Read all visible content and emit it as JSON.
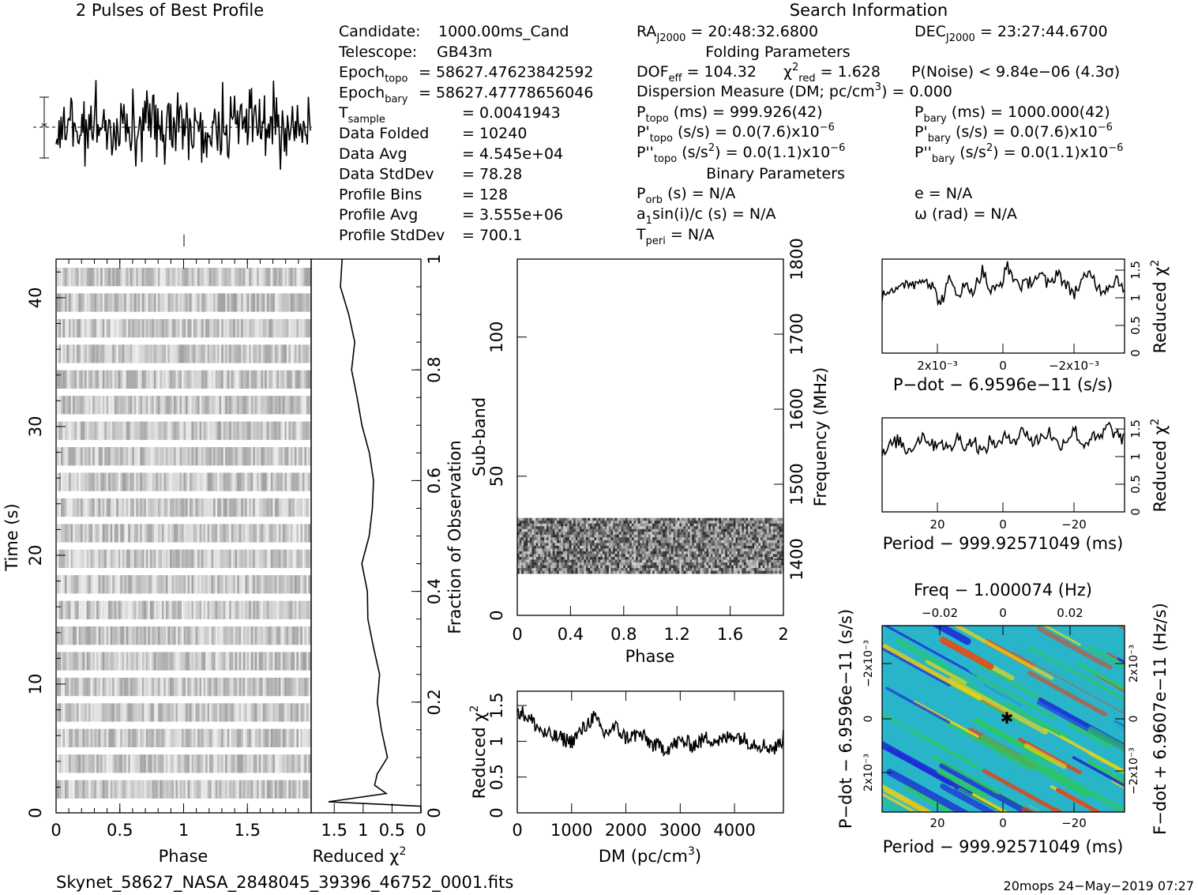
{
  "header": {
    "profile_title": "2 Pulses of Best Profile",
    "search_title": "Search Information",
    "folding_title": "Folding Parameters",
    "binary_title": "Binary Parameters"
  },
  "candidate_info": [
    {
      "label": "Candidate:",
      "value": "1000.00ms_Cand"
    },
    {
      "label": "Telescope:",
      "value": "GB43m"
    },
    {
      "label": "Epoch",
      "sub": "topo",
      "value": "= 58627.47623842592"
    },
    {
      "label": "Epoch",
      "sub": "bary",
      "value": "= 58627.47778656046"
    },
    {
      "label": "T",
      "sub": "sample",
      "value": "=   0.0041943"
    },
    {
      "label": "Data Folded",
      "value": "=   10240"
    },
    {
      "label": "Data Avg",
      "value": "=   4.545e+04"
    },
    {
      "label": "Data StdDev",
      "value": "=   78.28"
    },
    {
      "label": "Profile Bins",
      "value": "=   128"
    },
    {
      "label": "Profile Avg",
      "value": "=   3.555e+06"
    },
    {
      "label": "Profile StdDev",
      "value": "=   700.1"
    }
  ],
  "search_info": {
    "ra": "= 20:48:32.6800",
    "dec": "= 23:27:44.6700",
    "dof": "= 104.32",
    "chi2_red": "= 1.628",
    "p_noise": "P(Noise) < 9.84e−06  (4.3σ)",
    "dm": "Dispersion Measure (DM; pc/cm",
    "dm_value": ") = 0.000",
    "p_topo": "(ms) =   999.926(42)",
    "p_bary": "(ms) =   1000.000(42)",
    "pd_topo": "(s/s) = 0.0(7.6)x10",
    "pd_bary": "(s/s) = 0.0(7.6)x10",
    "pdd_topo": "(s/s",
    "pdd_topo_value": ") = 0.0(1.1)x10",
    "pdd_bary": "(s/s",
    "pdd_bary_value": ") = 0.0(1.1)x10",
    "exp": "−6",
    "p_orb": "(s) = N/A",
    "a1sini": "sin(i)/c (s) = N/A",
    "t_peri": "= N/A",
    "ecc": "e = N/A",
    "omega": "ω (rad) = N/A"
  },
  "footer": {
    "filename": "Skynet_58627_NASA_2848045_39396_46752_0001.fits",
    "stamp": "20mops 24−May−2019 07:27"
  },
  "chart_data": [
    {
      "type": "line",
      "name": "pulse-profile",
      "title": "2 Pulses of Best Profile",
      "x_range": [
        0,
        2
      ],
      "bins_per_pulse": 128,
      "note_shape": "noise-like, no clear pulse"
    },
    {
      "type": "heatmap",
      "name": "time-phase",
      "xlabel": "Phase",
      "ylabel": "Time (s)",
      "xlim": [
        0,
        2
      ],
      "ylim": [
        0,
        43
      ],
      "x_ticks": [
        "0",
        "0.5",
        "1",
        "1.5"
      ],
      "y_ticks": [
        "0",
        "10",
        "20",
        "30",
        "40"
      ]
    },
    {
      "type": "line",
      "name": "time-reduced-chi2",
      "xlabel": "Reduced χ²",
      "x_ticks": [
        "1.5",
        "1",
        "0.5",
        "0"
      ],
      "right_ylabel": "Fraction of Observation",
      "right_ticks": [
        "0",
        "0.2",
        "0.4",
        "0.6",
        "0.8",
        "1"
      ],
      "fraction": [
        0.0,
        0.012,
        0.02,
        0.035,
        0.05,
        0.07,
        0.1,
        0.15,
        0.2,
        0.25,
        0.3,
        0.35,
        0.4,
        0.45,
        0.5,
        0.55,
        0.6,
        0.65,
        0.7,
        0.75,
        0.8,
        0.85,
        0.9,
        0.95,
        1.0
      ],
      "chi2": [
        0.0,
        0.0,
        1.6,
        0.6,
        0.85,
        0.7,
        0.6,
        0.7,
        0.75,
        0.7,
        0.8,
        0.95,
        0.95,
        1.0,
        0.95,
        0.85,
        0.82,
        0.9,
        0.98,
        1.05,
        1.15,
        1.2,
        1.3,
        1.35,
        1.4
      ]
    },
    {
      "type": "heatmap",
      "name": "subband-phase",
      "xlabel": "Phase",
      "ylabel": "Sub-band",
      "xlim": [
        0,
        2
      ],
      "ylim": [
        0,
        128
      ],
      "x_ticks": [
        "0",
        "0.4",
        "0.8",
        "1.2",
        "1.6",
        "2"
      ],
      "y_ticks": [
        "0",
        "50",
        "100"
      ],
      "right_ylabel": "Frequency (MHz)",
      "right_ticks": [
        "1400",
        "1500",
        "1600",
        "1700",
        "1800"
      ],
      "filled_subbands": [
        15,
        35
      ]
    },
    {
      "type": "line",
      "name": "dm-chi2",
      "xlabel": "DM (pc/cm³)",
      "ylabel": "Reduced χ²",
      "xlim": [
        0,
        4900
      ],
      "ylim": [
        0,
        1.7
      ],
      "x_ticks": [
        "0",
        "1000",
        "2000",
        "3000",
        "4000"
      ],
      "y_ticks": [
        "0",
        "0.5",
        "1",
        "1.5"
      ],
      "x": [
        0,
        250,
        500,
        750,
        1000,
        1250,
        1400,
        1600,
        1800,
        2000,
        2250,
        2500,
        2750,
        3000,
        3250,
        3500,
        3750,
        4000,
        4250,
        4500,
        4750,
        4900
      ],
      "y": [
        1.45,
        1.3,
        1.1,
        1.05,
        1.0,
        1.2,
        1.35,
        1.1,
        1.2,
        1.05,
        1.1,
        0.95,
        0.9,
        1.0,
        0.95,
        1.05,
        1.0,
        1.1,
        1.0,
        0.95,
        0.9,
        1.05
      ]
    },
    {
      "type": "line",
      "name": "pdot-chi2",
      "xlabel": "P−dot − 6.9596e−11 (s/s)",
      "right_ylabel": "Reduced χ²",
      "x_ticks": [
        "2x10⁻³",
        "0",
        "−2x10⁻³"
      ],
      "right_ticks": [
        "0",
        "0.5",
        "1",
        "1.5"
      ],
      "y": [
        1.05,
        1.2,
        1.1,
        1.3,
        1.25,
        1.4,
        1.2,
        0.9,
        1.3,
        1.1,
        1.2,
        1.15,
        1.5,
        1.1,
        1.2,
        1.55,
        1.3,
        1.2,
        1.35,
        1.4,
        1.2,
        1.5,
        1.2,
        1.1,
        1.3,
        1.45,
        1.15,
        1.2,
        1.35,
        1.2
      ]
    },
    {
      "type": "line",
      "name": "period-chi2",
      "xlabel": "Period − 999.92571049 (ms)",
      "right_ylabel": "Reduced χ²",
      "x_ticks": [
        "20",
        "0",
        "−20"
      ],
      "right_ticks": [
        "0",
        "0.5",
        "1",
        "1.5"
      ],
      "y": [
        1.0,
        1.2,
        1.3,
        1.1,
        1.25,
        1.4,
        1.2,
        1.3,
        1.1,
        1.35,
        1.2,
        1.3,
        1.05,
        1.3,
        1.2,
        1.4,
        1.3,
        1.5,
        1.25,
        1.35,
        1.45,
        1.2,
        1.3,
        1.5,
        1.2,
        1.35,
        1.3,
        1.55,
        1.4,
        1.3
      ]
    },
    {
      "type": "heatmap",
      "name": "period-pdot",
      "top_xlabel": "Freq − 1.000074 (Hz)",
      "top_ticks": [
        "−0.02",
        "0",
        "0.02"
      ],
      "xlabel": "Period − 999.92571049 (ms)",
      "x_ticks": [
        "20",
        "0",
        "−20"
      ],
      "ylabel": "P−dot − 6.9596e−11 (s/s)",
      "y_ticks": [
        "2x10⁻³",
        "0",
        "−2x10⁻³"
      ],
      "right_ylabel": "F−dot + 6.9607e−11 (Hz/s)",
      "right_ticks": [
        "−2x10⁻³",
        "0",
        "2x10⁻³"
      ],
      "best_fit_marker": [
        0,
        0
      ]
    }
  ],
  "colors": {
    "ink": "#000000",
    "cool": "#1d2bd8",
    "mid": "#29b5c9",
    "warm": "#2cc860",
    "hot": "#e7d51b",
    "peak": "#e0441a"
  }
}
